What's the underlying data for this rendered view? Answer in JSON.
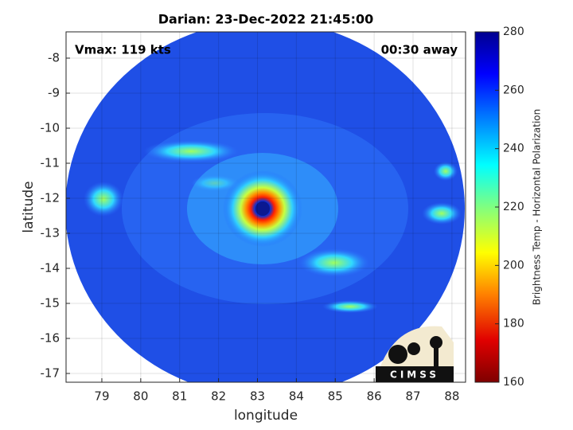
{
  "chart_data": {
    "type": "image",
    "title": "Darian: 23-Dec-2022 21:45:00",
    "annotations": [
      "Vmax: 119 kts",
      "00:30 away"
    ],
    "xlabel": "longitude",
    "ylabel": "latitude",
    "xlim": [
      78.08,
      88.35
    ],
    "xticks": [
      79,
      80,
      81,
      82,
      83,
      84,
      85,
      86,
      87,
      88
    ],
    "ylim": [
      -17.25,
      -7.25
    ],
    "yticks": [
      -17,
      -16,
      -15,
      -14,
      -13,
      -12,
      -11,
      -10,
      -9,
      -8
    ],
    "grid": true,
    "colorbar": {
      "label": "Brightness Temp - Horizontal Polarization",
      "clim": [
        160,
        280
      ],
      "ticks": [
        160,
        180,
        200,
        220,
        240,
        260,
        280
      ]
    },
    "logo": "CIMSS"
  }
}
